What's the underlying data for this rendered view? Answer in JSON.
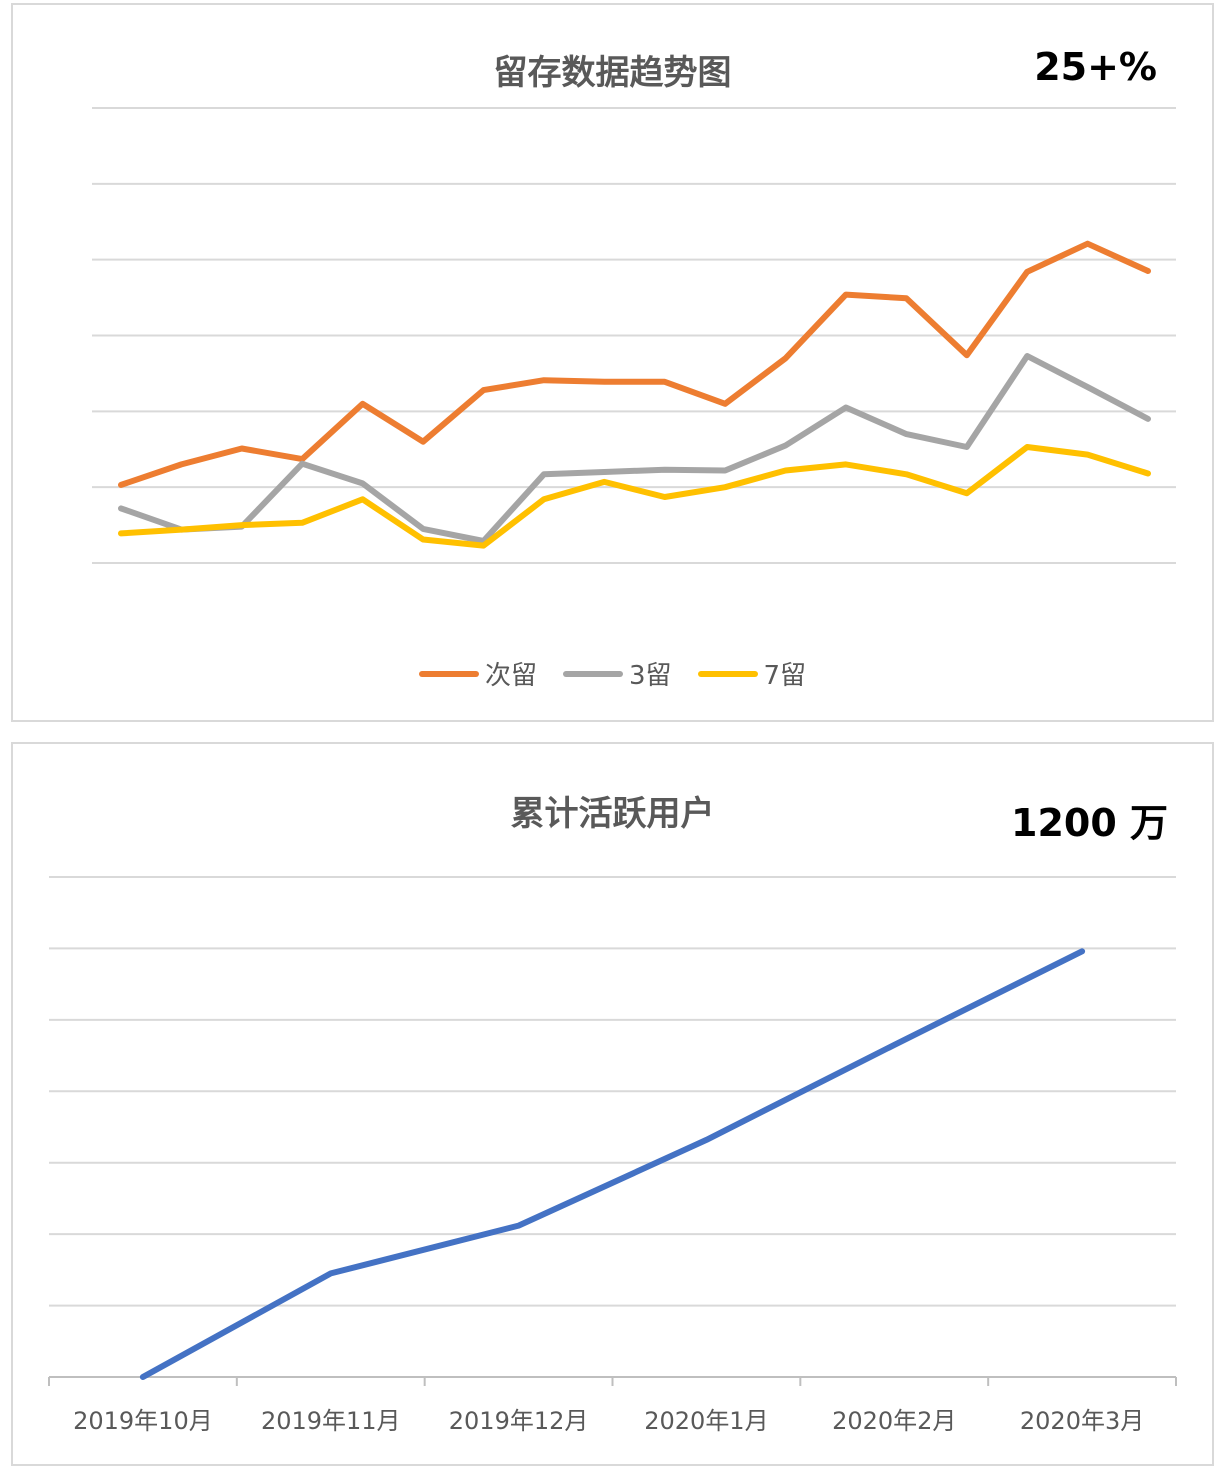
{
  "chart_data": [
    {
      "type": "line",
      "title": "留存数据趋势图",
      "kpi": "25+%",
      "grid": true,
      "legend_position": "bottom",
      "ylim": [
        0,
        6
      ],
      "gridlines": [
        1,
        2,
        3,
        4,
        5,
        6
      ],
      "x": [
        1,
        2,
        3,
        4,
        5,
        6,
        7,
        8,
        9,
        10,
        11,
        12,
        13,
        14,
        15,
        16,
        17,
        18
      ],
      "series": [
        {
          "name": "次留",
          "color": "#ED7D31",
          "values": [
            1.03,
            1.3,
            1.51,
            1.37,
            2.1,
            1.6,
            2.28,
            2.41,
            2.39,
            2.39,
            2.1,
            2.7,
            3.54,
            3.49,
            2.74,
            3.84,
            4.21,
            3.85
          ]
        },
        {
          "name": "3留",
          "color": "#A5A5A5",
          "values": [
            0.72,
            0.44,
            0.48,
            1.31,
            1.05,
            0.45,
            0.29,
            1.17,
            1.2,
            1.23,
            1.22,
            1.55,
            2.05,
            1.7,
            1.53,
            2.73,
            2.32,
            1.9
          ]
        },
        {
          "name": "7留",
          "color": "#FFC000",
          "values": [
            0.39,
            0.44,
            0.5,
            0.53,
            0.84,
            0.31,
            0.23,
            0.84,
            1.07,
            0.87,
            1.0,
            1.22,
            1.3,
            1.17,
            0.92,
            1.53,
            1.43,
            1.18
          ]
        }
      ]
    },
    {
      "type": "line",
      "title": "累计活跃用户",
      "kpi": "1200 万",
      "grid": true,
      "legend_position": "none",
      "ylim": [
        0,
        7
      ],
      "gridlines": [
        1,
        2,
        3,
        4,
        5,
        6,
        7
      ],
      "categories": [
        "2019年10月",
        "2019年11月",
        "2019年12月",
        "2020年1月",
        "2020年2月",
        "2020年3月"
      ],
      "series": [
        {
          "name": "",
          "color": "#4472C4",
          "values": [
            0.0,
            1.45,
            2.12,
            3.32,
            4.65,
            5.96
          ]
        }
      ]
    }
  ]
}
